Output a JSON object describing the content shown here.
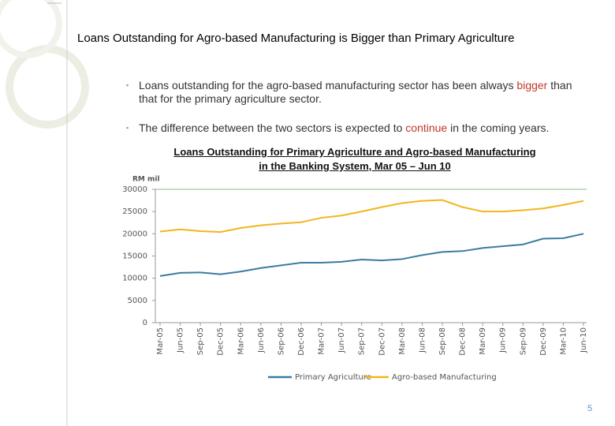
{
  "title": "Loans Outstanding for Agro-based Manufacturing is Bigger than Primary Agriculture",
  "bullets": [
    [
      "Loans outstanding for the agro-based manufacturing sector has been always ",
      "bigger",
      " than that for the primary agriculture sector."
    ],
    [
      "The difference between the two sectors is expected to ",
      "continue",
      " in the coming years."
    ]
  ],
  "page_number": "5",
  "chart_data": {
    "type": "line",
    "title": [
      "Loans Outstanding for Primary Agriculture and Agro-based Manufacturing",
      "in the Banking System, Mar 05 – Jun 10"
    ],
    "y_label": "RM mil",
    "categories": [
      "Mar-05",
      "Jun-05",
      "Sep-05",
      "Dec-05",
      "Mar-06",
      "Jun-06",
      "Sep-06",
      "Dec-06",
      "Mar-07",
      "Jun-07",
      "Sep-07",
      "Dec-07",
      "Mar-08",
      "Jun-08",
      "Sep-08",
      "Dec-08",
      "Mar-09",
      "Jun-09",
      "Sep-09",
      "Dec-09",
      "Mar-10",
      "Jun-10"
    ],
    "series": [
      {
        "name": "Primary Agriculture",
        "color": "#3a7ca0",
        "values": [
          10500,
          11200,
          11300,
          10900,
          11500,
          12300,
          12900,
          13500,
          13500,
          13700,
          14200,
          14000,
          14300,
          15200,
          15900,
          16100,
          16800,
          17200,
          17600,
          18900,
          19000,
          20000
        ]
      },
      {
        "name": "Agro-based Manufacturing",
        "color": "#f2b51c",
        "values": [
          20500,
          21000,
          20600,
          20400,
          21300,
          21900,
          22300,
          22600,
          23600,
          24100,
          25000,
          26000,
          26900,
          27400,
          27600,
          26000,
          25000,
          25000,
          25300,
          25700,
          26500,
          27400
        ]
      }
    ],
    "ylim": [
      0,
      30000
    ],
    "yticks": [
      0,
      5000,
      10000,
      15000,
      20000,
      25000,
      30000
    ],
    "grid": false,
    "legend": "bottom"
  }
}
